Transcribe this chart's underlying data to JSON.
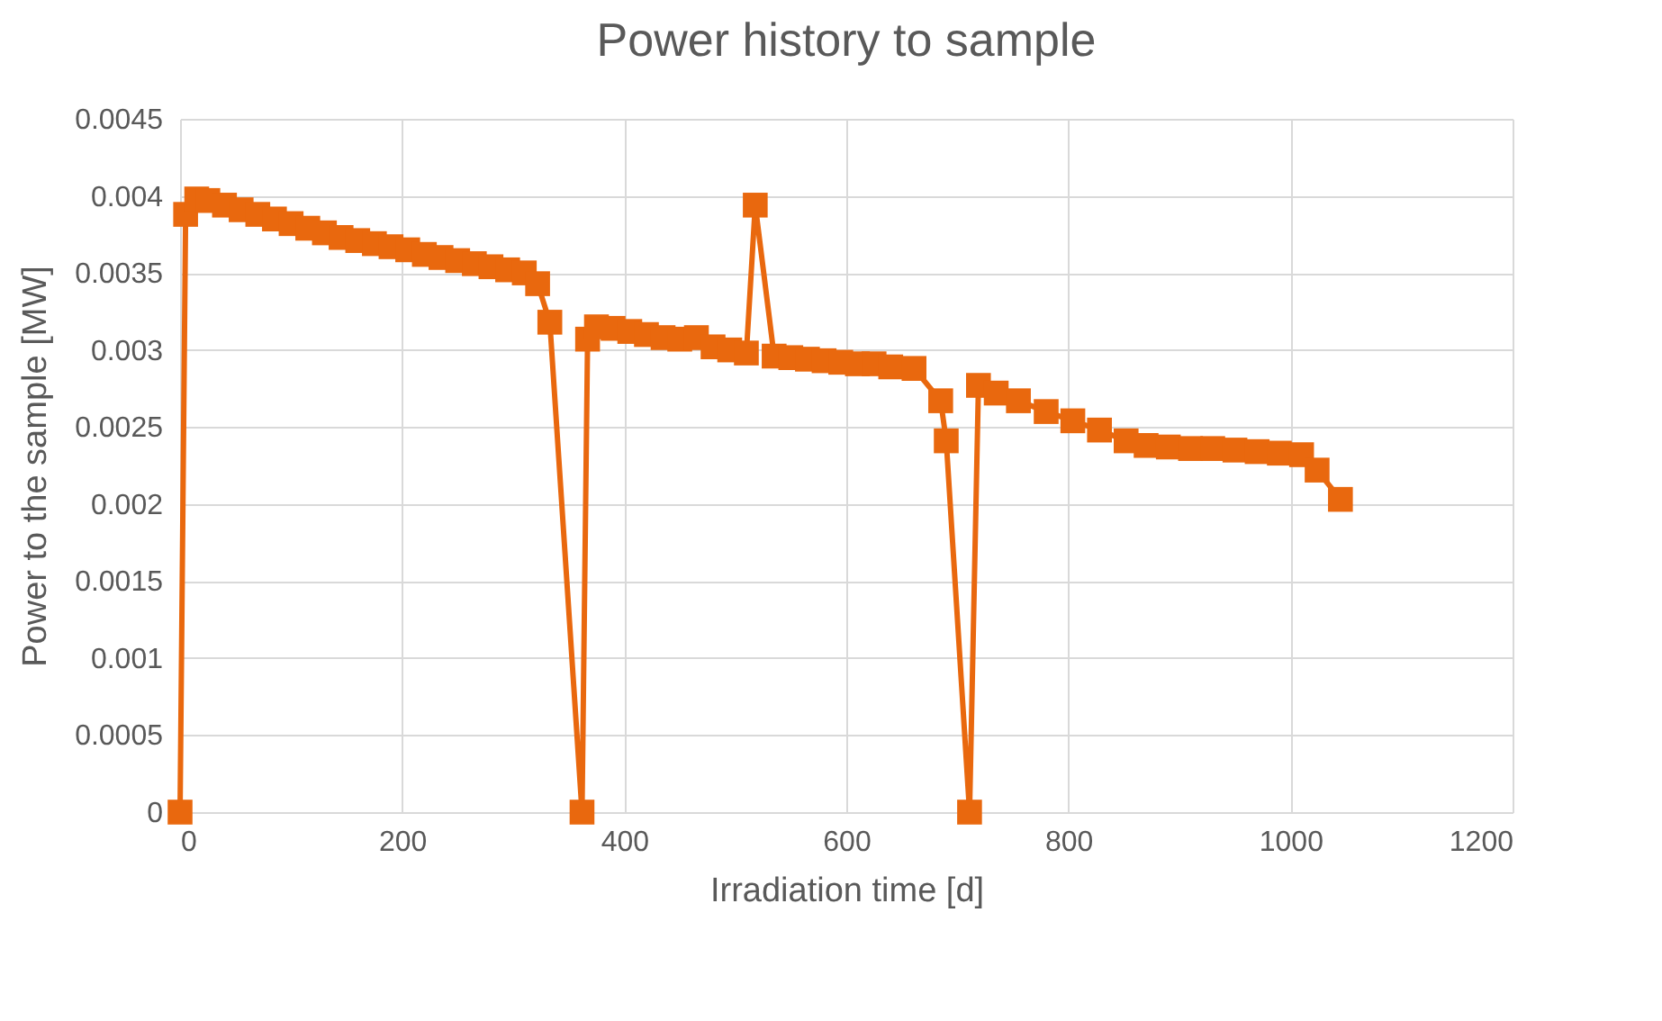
{
  "chart_data": {
    "type": "line",
    "title": "Power history to sample",
    "xlabel": "Irradiation time [d]",
    "ylabel": "Power to the sample [MW]",
    "x": [
      0,
      5,
      15,
      25,
      40,
      55,
      70,
      85,
      100,
      115,
      130,
      145,
      160,
      175,
      190,
      205,
      220,
      235,
      250,
      265,
      280,
      295,
      310,
      322,
      333,
      362,
      367,
      375,
      390,
      405,
      420,
      435,
      450,
      465,
      480,
      495,
      510,
      518,
      535,
      550,
      565,
      580,
      595,
      610,
      625,
      640,
      661,
      685,
      690,
      711,
      719,
      735,
      755,
      780,
      804,
      828,
      852,
      870,
      890,
      910,
      930,
      950,
      970,
      990,
      1010,
      1024,
      1045
    ],
    "series": [
      {
        "color": "#e9680e",
        "values": [
          0,
          0.00388,
          0.00398,
          0.00397,
          0.00394,
          0.00391,
          0.00388,
          0.00385,
          0.00382,
          0.00379,
          0.00376,
          0.00373,
          0.00371,
          0.00369,
          0.00367,
          0.00365,
          0.00362,
          0.0036,
          0.00358,
          0.00356,
          0.00354,
          0.00352,
          0.0035,
          0.00343,
          0.00318,
          0,
          0.00307,
          0.00315,
          0.00314,
          0.00312,
          0.0031,
          0.00308,
          0.00307,
          0.00308,
          0.00302,
          0.003,
          0.00298,
          0.00394,
          0.00296,
          0.00295,
          0.00294,
          0.00293,
          0.00292,
          0.00291,
          0.00291,
          0.00289,
          0.00288,
          0.00267,
          0.00241,
          0,
          0.00277,
          0.00272,
          0.00267,
          0.0026,
          0.00254,
          0.00248,
          0.00241,
          0.00238,
          0.00237,
          0.00236,
          0.00236,
          0.00235,
          0.00234,
          0.00233,
          0.00232,
          0.00222,
          0.00203
        ]
      }
    ],
    "xlim": [
      0,
      1200
    ],
    "xticks": [
      0,
      200,
      400,
      600,
      800,
      1000,
      1200
    ],
    "ylim": [
      0,
      0.0045
    ],
    "yticks": [
      0,
      0.0005,
      0.001,
      0.0015,
      0.002,
      0.0025,
      0.003,
      0.0035,
      0.004,
      0.0045
    ],
    "grid": true,
    "marker": "square",
    "line_style": "solid"
  }
}
